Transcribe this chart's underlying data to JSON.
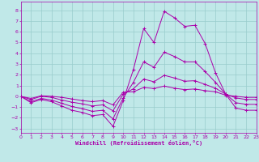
{
  "xlabel": "Windchill (Refroidissement éolien,°C)",
  "bg_color": "#c0e8e8",
  "grid_color": "#99cccc",
  "line_color": "#aa00aa",
  "spine_color": "#aa00aa",
  "xlim": [
    0,
    23
  ],
  "ylim": [
    -3.4,
    8.8
  ],
  "xticks": [
    0,
    1,
    2,
    3,
    4,
    5,
    6,
    7,
    8,
    9,
    10,
    11,
    12,
    13,
    14,
    15,
    16,
    17,
    18,
    19,
    20,
    21,
    22,
    23
  ],
  "yticks": [
    -3,
    -2,
    -1,
    0,
    1,
    2,
    3,
    4,
    5,
    6,
    7,
    8
  ],
  "lines": [
    [
      0.0,
      -0.6,
      -0.3,
      -0.5,
      -0.9,
      -1.3,
      -1.5,
      -1.8,
      -1.7,
      -2.8,
      -0.4,
      2.5,
      6.3,
      5.0,
      7.9,
      7.3,
      6.5,
      6.6,
      4.9,
      2.2,
      0.2,
      -1.1,
      -1.3,
      -1.3
    ],
    [
      0.0,
      -0.5,
      -0.2,
      -0.35,
      -0.65,
      -0.95,
      -1.15,
      -1.4,
      -1.3,
      -2.1,
      -0.15,
      1.3,
      3.2,
      2.7,
      4.1,
      3.7,
      3.2,
      3.2,
      2.3,
      1.3,
      0.2,
      -0.6,
      -0.75,
      -0.75
    ],
    [
      0.0,
      -0.3,
      0.0,
      -0.1,
      -0.35,
      -0.55,
      -0.7,
      -0.9,
      -0.8,
      -1.35,
      0.2,
      0.7,
      1.6,
      1.35,
      1.95,
      1.7,
      1.4,
      1.45,
      1.1,
      0.75,
      0.2,
      -0.15,
      -0.3,
      -0.3
    ],
    [
      0.0,
      -0.2,
      0.05,
      0.0,
      -0.1,
      -0.25,
      -0.4,
      -0.5,
      -0.4,
      -0.8,
      0.38,
      0.42,
      0.82,
      0.72,
      0.95,
      0.75,
      0.62,
      0.68,
      0.52,
      0.42,
      0.1,
      0.0,
      -0.1,
      -0.1
    ]
  ]
}
